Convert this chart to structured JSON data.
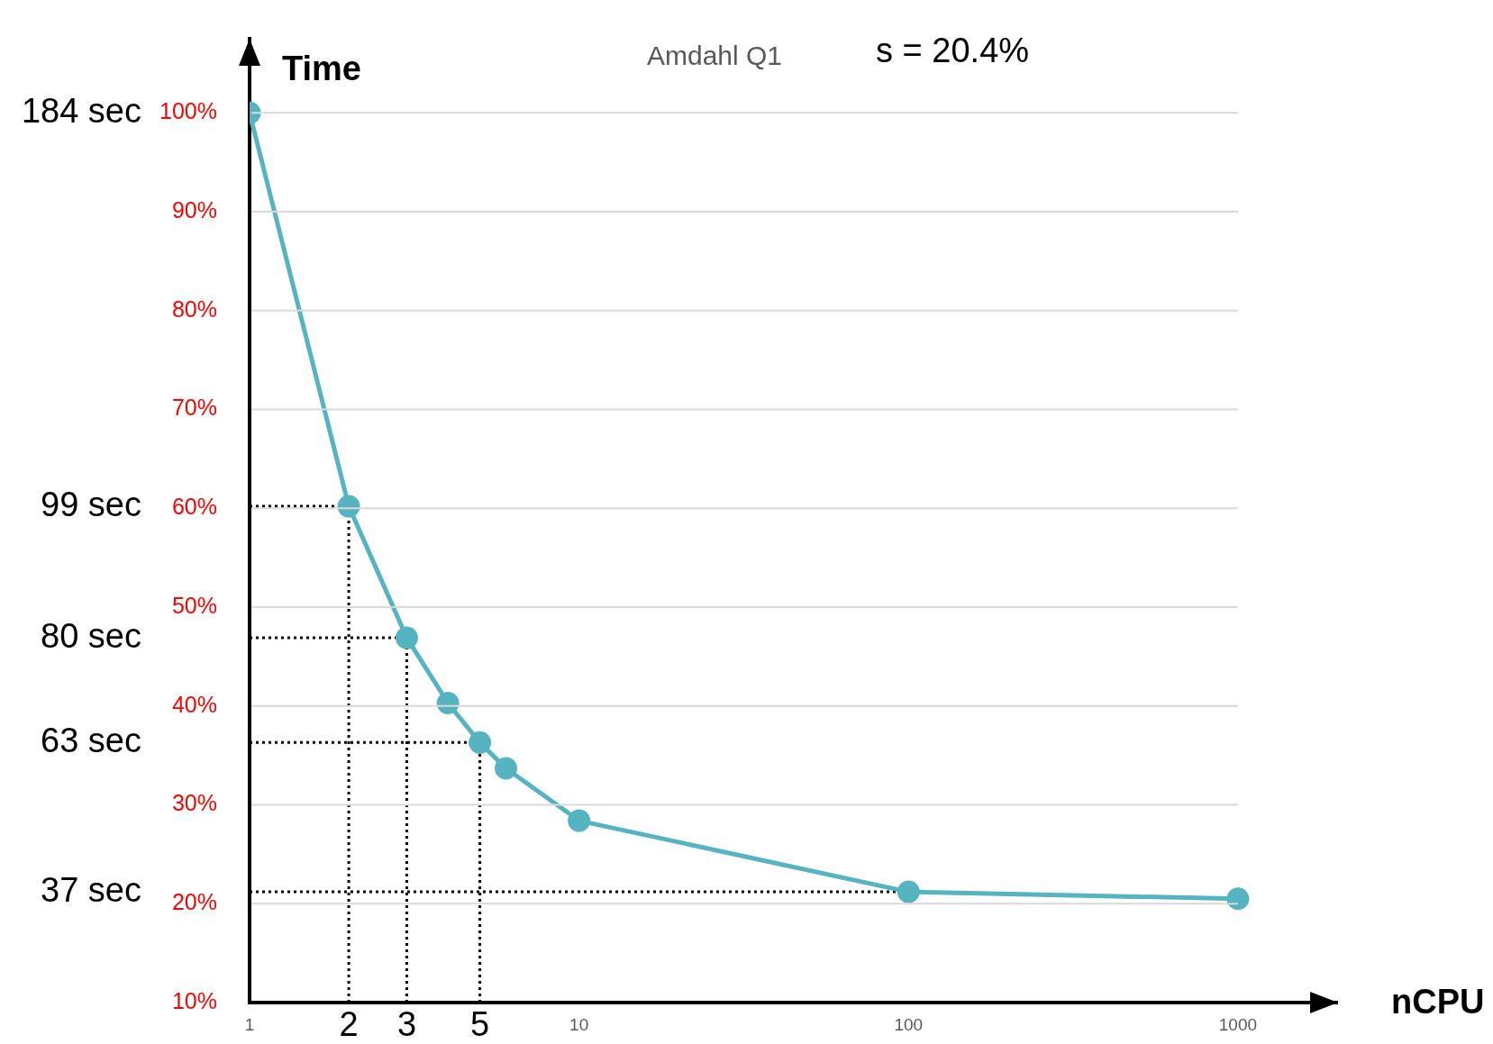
{
  "chart_data": {
    "type": "line",
    "title": "Amdahl Q1",
    "xlabel": "nCPU",
    "ylabel": "Time",
    "annotations": [
      "s = 20.4%",
      "184 sec",
      "99 sec",
      "80 sec",
      "63 sec",
      "37 sec"
    ],
    "x": [
      1,
      2,
      3,
      4,
      5,
      6,
      10,
      100,
      1000
    ],
    "series": [
      {
        "color": "#56b4c0",
        "values": [
          100,
          60.2,
          46.9,
          40.3,
          36.3,
          33.7,
          28.4,
          21.2,
          20.5
        ]
      }
    ],
    "log": "x",
    "xlim": [
      1,
      2000
    ],
    "xticks": [
      1,
      10,
      100,
      1000
    ],
    "ylim": [
      10,
      107.5
    ],
    "yticks": [
      {
        "value": 10,
        "label": "10%"
      },
      {
        "value": 20,
        "label": "20%"
      },
      {
        "value": 30,
        "label": "30%"
      },
      {
        "value": 40,
        "label": "40%"
      },
      {
        "value": 50,
        "label": "50%"
      },
      {
        "value": 60,
        "label": "60%"
      },
      {
        "value": 70,
        "label": "70%"
      },
      {
        "value": 80,
        "label": "80%"
      },
      {
        "value": 90,
        "label": "90%"
      },
      {
        "value": 100,
        "label": "100%"
      }
    ],
    "ref_lines": [
      {
        "axis": "x",
        "value": 2,
        "label": "2"
      },
      {
        "axis": "x",
        "value": 3,
        "label": "3"
      },
      {
        "axis": "x",
        "value": 5,
        "label": "5"
      },
      {
        "axis": "y",
        "value": 60.2
      },
      {
        "axis": "y",
        "value": 46.9
      },
      {
        "axis": "y",
        "value": 36.3
      },
      {
        "axis": "y",
        "value": 21.2
      }
    ],
    "grid": "y",
    "legend": false,
    "marker": "circle",
    "line_style": "solid"
  }
}
